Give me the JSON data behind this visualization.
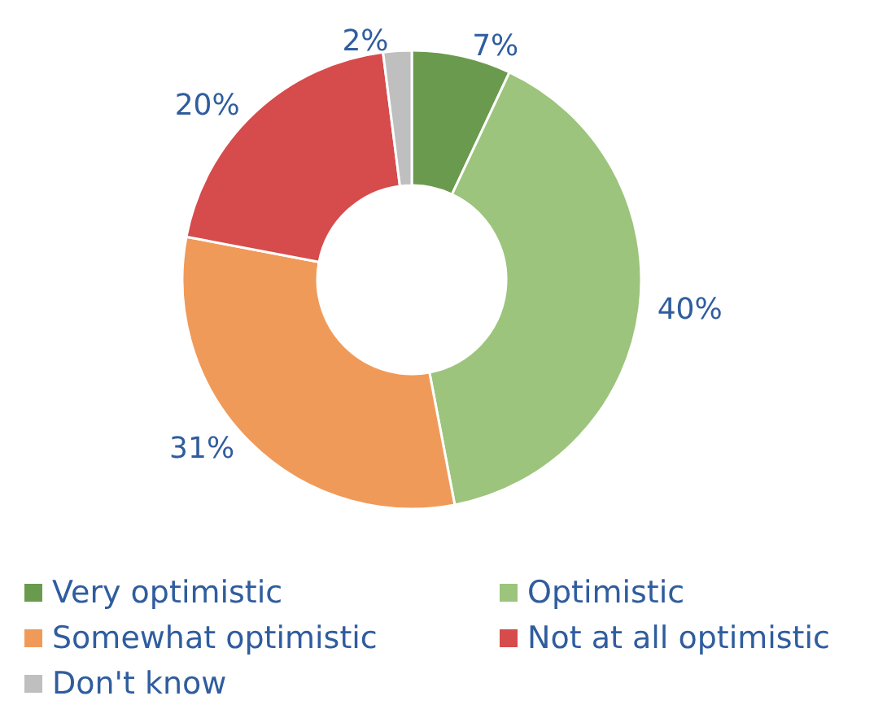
{
  "chart_data": {
    "type": "donut",
    "categories": [
      "Very optimistic",
      "Optimistic",
      "Somewhat optimistic",
      "Not at all optimistic",
      "Don't know"
    ],
    "values": [
      7,
      40,
      31,
      20,
      2
    ],
    "colors": [
      "#6a9a4e",
      "#9cc47c",
      "#f09a5a",
      "#d64b4b",
      "#bfbfbf"
    ],
    "value_labels": [
      "7%",
      "40%",
      "31%",
      "20%",
      "2%"
    ],
    "legend": "bottom"
  }
}
